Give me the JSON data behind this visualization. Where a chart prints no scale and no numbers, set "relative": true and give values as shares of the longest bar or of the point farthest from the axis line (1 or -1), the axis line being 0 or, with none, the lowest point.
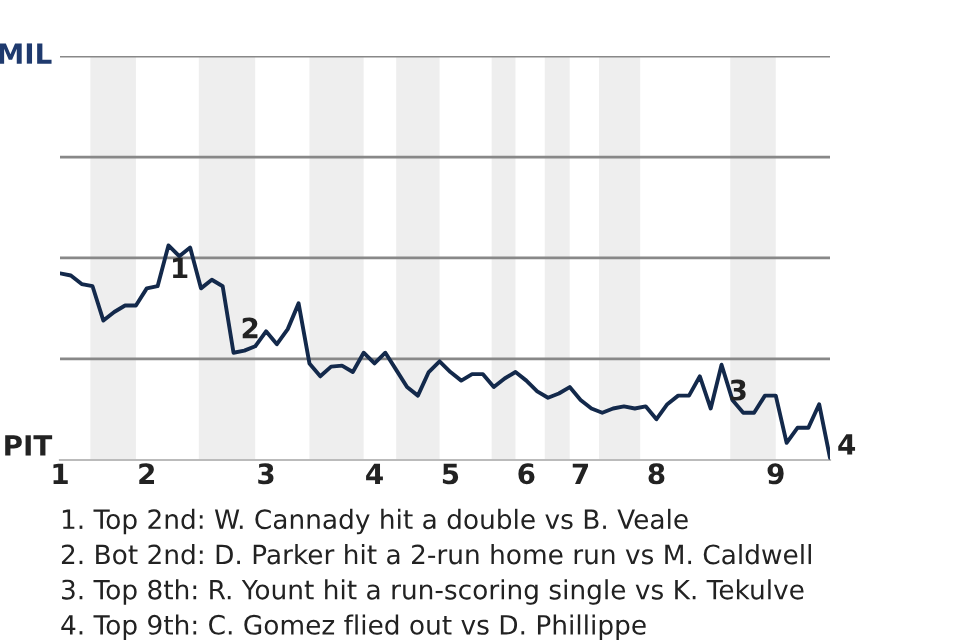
{
  "chart_data": {
    "type": "line",
    "relative": true,
    "categories": [
      "1",
      null,
      null,
      null,
      null,
      null,
      null,
      null,
      "2",
      null,
      null,
      null,
      null,
      null,
      null,
      null,
      null,
      null,
      null,
      "3",
      null,
      null,
      null,
      null,
      null,
      null,
      null,
      null,
      null,
      "4",
      null,
      null,
      null,
      null,
      null,
      null,
      "5",
      null,
      null,
      null,
      null,
      null,
      null,
      "6",
      null,
      null,
      null,
      null,
      "7",
      null,
      null,
      null,
      null,
      null,
      null,
      "8",
      null,
      null,
      null,
      null,
      null,
      null,
      null,
      null,
      null,
      null,
      "9",
      null,
      null,
      null,
      null,
      null
    ],
    "series": [
      {
        "color": "#13294b",
        "values": [
          0.87,
          0.86,
          0.82,
          0.81,
          0.65,
          0.69,
          0.72,
          0.72,
          0.8,
          0.81,
          1,
          0.95,
          0.99,
          0.8,
          0.84,
          0.81,
          0.5,
          0.51,
          0.53,
          0.6,
          0.54,
          0.61,
          0.73,
          0.45,
          0.39,
          0.435,
          0.44,
          0.41,
          0.5,
          0.45,
          0.5,
          0.42,
          0.34,
          0.3,
          0.41,
          0.46,
          0.41,
          0.37,
          0.4,
          0.4,
          0.34,
          0.38,
          0.41,
          0.37,
          0.32,
          0.29,
          0.31,
          0.34,
          0.28,
          0.24,
          0.22,
          0.24,
          0.25,
          0.24,
          0.25,
          0.19,
          0.26,
          0.3,
          0.3,
          0.39,
          0.24,
          0.444,
          0.28,
          0.22,
          0.22,
          0.3,
          0.3,
          0.08,
          0.15,
          0.15,
          0.26,
          0.01
        ]
      }
    ],
    "legend": false,
    "ref_lines": [
      {
        "axis": "y",
        "value": 0.471,
        "color": "#888888"
      },
      {
        "axis": "y",
        "value": 0.942,
        "color": "#888888"
      },
      {
        "axis": "y",
        "value": 1.412,
        "color": "#888888"
      },
      {
        "axis": "y",
        "value": 1.883,
        "color": "#888888"
      }
    ],
    "annotations": [
      "MIL",
      "PIT",
      "1",
      "2",
      "3",
      "4",
      "1. Top 2nd: W. Cannady hit a double vs B. Veale",
      "2. Bot 2nd: D. Parker hit a 2-run home run vs M. Caldwell",
      "3. Top 8th: R. Yount hit a run-scoring single vs K. Tekulve",
      "4. Top 9th: C. Gomez flied out vs D. Phillippe"
    ]
  }
}
